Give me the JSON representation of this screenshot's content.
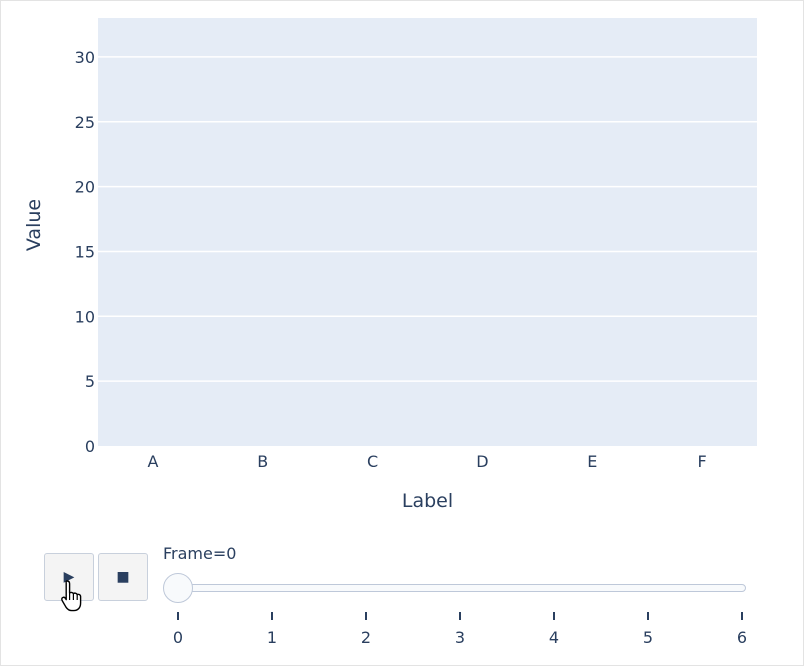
{
  "chart_data": {
    "type": "bar",
    "title": "",
    "xlabel": "Label",
    "ylabel": "Value",
    "categories": [
      "A",
      "B",
      "C",
      "D",
      "E",
      "F"
    ],
    "values": [
      0,
      0,
      0,
      0,
      0,
      0
    ],
    "ylim": [
      0,
      33
    ],
    "yticks": [
      0,
      5,
      10,
      15,
      20,
      25,
      30
    ],
    "grid": true,
    "plot_bgcolor": "#e5ecf6",
    "grid_color": "#ffffff",
    "bar_color": "#636efa"
  },
  "controls": {
    "play_icon": "play-icon",
    "stop_icon": "stop-icon",
    "play_glyph": "▶",
    "stop_glyph": "■"
  },
  "slider": {
    "prefix": "Frame=",
    "current": "0",
    "current_index": 0,
    "steps": [
      "0",
      "1",
      "2",
      "3",
      "4",
      "5",
      "6"
    ]
  }
}
